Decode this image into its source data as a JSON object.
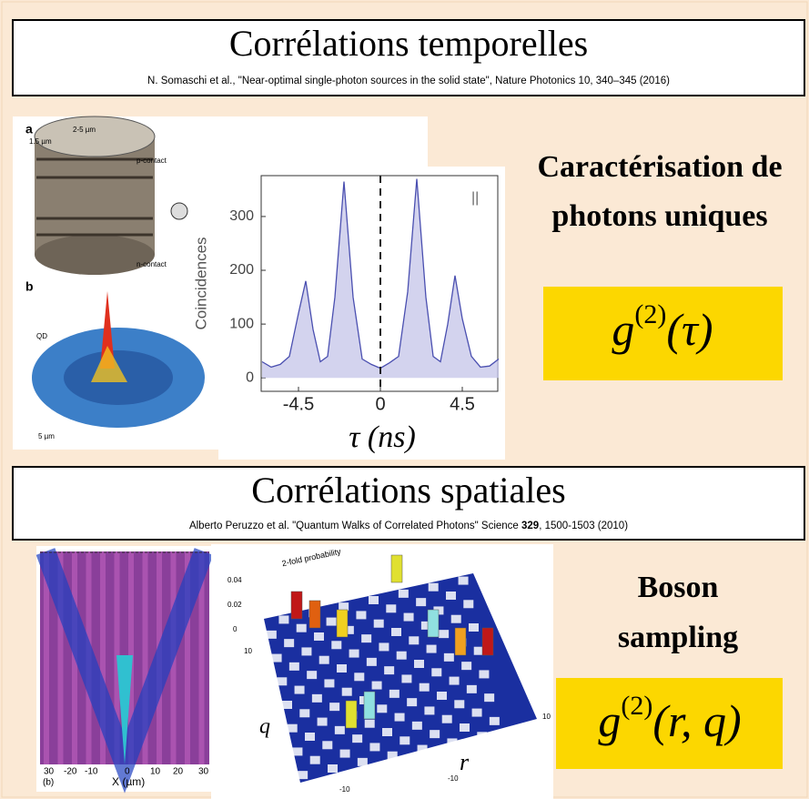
{
  "section1": {
    "title": "Corrélations temporelles",
    "citation": "N. Somaschi et al., \"Near-optimal single-photon sources in the solid state\", Nature Photonics 10, 340–345 (2016)",
    "side_lines": [
      "Caractérisation de",
      "photons uniques"
    ],
    "formula": {
      "base": "g",
      "sup": "(2)",
      "arg": "(τ)"
    }
  },
  "figure1": {
    "labels": [
      "a",
      "1.5 µm",
      "2-5 µm",
      "p-contact",
      "n-contact",
      "b",
      "QD",
      "5 µm"
    ]
  },
  "chart_data": {
    "type": "line",
    "ylabel": "Coincidences",
    "xlabel": "τ (ns)",
    "annotation": "||",
    "color": "#4a4fb0",
    "x": [
      -6.5,
      -6,
      -5.5,
      -5,
      -4.5,
      -4.1,
      -3.7,
      -3.3,
      -2.9,
      -2.5,
      -2.0,
      -1.5,
      -1.0,
      -0.5,
      0,
      0.5,
      1.0,
      1.5,
      2.0,
      2.5,
      2.9,
      3.3,
      3.7,
      4.1,
      4.5,
      5,
      5.5,
      6,
      6.5
    ],
    "values": [
      30,
      20,
      25,
      40,
      120,
      180,
      90,
      30,
      40,
      150,
      365,
      150,
      35,
      25,
      18,
      28,
      40,
      160,
      370,
      150,
      40,
      30,
      100,
      190,
      110,
      40,
      20,
      22,
      35
    ],
    "xlim": [
      -6.55,
      6.45
    ],
    "ylim": [
      -25,
      376
    ],
    "xticks": [
      -4.5,
      0,
      4.5
    ],
    "yticks": [
      0,
      100,
      200,
      300
    ]
  },
  "section2": {
    "title": "Corrélations spatiales",
    "citation": [
      "Alberto Peruzzo et al. \"Quantum Walks of Correlated Photons\" Science ",
      "329",
      ", 1500-1503 (2010)"
    ],
    "side_lines": [
      "Boson",
      "sampling"
    ],
    "formula": {
      "base": "g",
      "sup": "(2)",
      "arg": "(r, q)"
    }
  },
  "figure2": {
    "left_labels": [
      "30",
      "-20",
      "-10",
      "0",
      "10",
      "20",
      "30",
      "(b)",
      "X (µm)"
    ],
    "right_labels": [
      "2-fold probability",
      "0.04",
      "0.02",
      "0",
      "10",
      "10",
      "-10",
      "-10",
      "q",
      "r"
    ]
  }
}
